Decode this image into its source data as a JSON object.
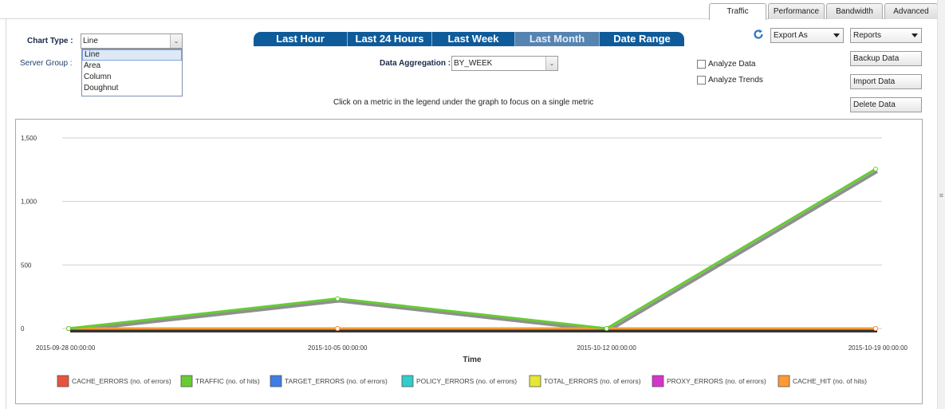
{
  "tabs": [
    {
      "label": "Traffic",
      "active": true
    },
    {
      "label": "Performance",
      "active": false
    },
    {
      "label": "Bandwidth",
      "active": false
    },
    {
      "label": "Advanced",
      "active": false
    }
  ],
  "chart_type": {
    "label": "Chart Type :",
    "value": "Line",
    "options": [
      "Line",
      "Area",
      "Column",
      "Doughnut"
    ]
  },
  "server_group": {
    "label": "Server Group :"
  },
  "time_range": {
    "buttons": [
      "Last Hour",
      "Last 24 Hours",
      "Last Week",
      "Last Month",
      "Date Range"
    ],
    "active": "Last Month"
  },
  "aggregation": {
    "label": "Data Aggregation :",
    "value": "BY_WEEK"
  },
  "hint": "Click on a metric in the legend under the graph to focus on a single metric",
  "export": {
    "label": "Export As"
  },
  "reports": {
    "label": "Reports"
  },
  "checkboxes": {
    "analyze_data": "Analyze Data",
    "analyze_trends": "Analyze Trends"
  },
  "actions": {
    "backup": "Backup Data",
    "import": "Import Data",
    "delete": "Delete Data"
  },
  "colors": {
    "accent": "#0f5b9a",
    "traffic": "#66cc33",
    "cache_hit": "#ff9933"
  },
  "chart_data": {
    "type": "line",
    "xlabel": "Time",
    "ylabel": "",
    "ylim": [
      0,
      1500
    ],
    "yticks": [
      "0",
      "500",
      "1,000",
      "1,500"
    ],
    "ytick_values": [
      0,
      500,
      1000,
      1500
    ],
    "categories": [
      "2015-09-28 00:00:00",
      "2015-10-05 00:00:00",
      "2015-10-12 00:00:00",
      "2015-10-19 00:00:00"
    ],
    "grid": true,
    "legend_position": "bottom",
    "series": [
      {
        "name": "CACHE_ERRORS (no. of errors)",
        "color": "#e8533c",
        "values": [
          0,
          0,
          0,
          0
        ]
      },
      {
        "name": "TRAFFIC (no. of hits)",
        "color": "#66cc33",
        "values": [
          0,
          235,
          0,
          1255
        ]
      },
      {
        "name": "TARGET_ERRORS (no. of errors)",
        "color": "#3d7de6",
        "values": [
          0,
          0,
          0,
          0
        ]
      },
      {
        "name": "POLICY_ERRORS (no. of errors)",
        "color": "#33cccc",
        "values": [
          0,
          0,
          0,
          0
        ]
      },
      {
        "name": "TOTAL_ERRORS (no. of errors)",
        "color": "#e6e633",
        "values": [
          0,
          0,
          0,
          0
        ]
      },
      {
        "name": "PROXY_ERRORS (no. of errors)",
        "color": "#d633cc",
        "values": [
          0,
          0,
          0,
          0
        ]
      },
      {
        "name": "CACHE_HIT (no. of hits)",
        "color": "#ff9933",
        "values": [
          0,
          0,
          0,
          0
        ]
      }
    ]
  }
}
